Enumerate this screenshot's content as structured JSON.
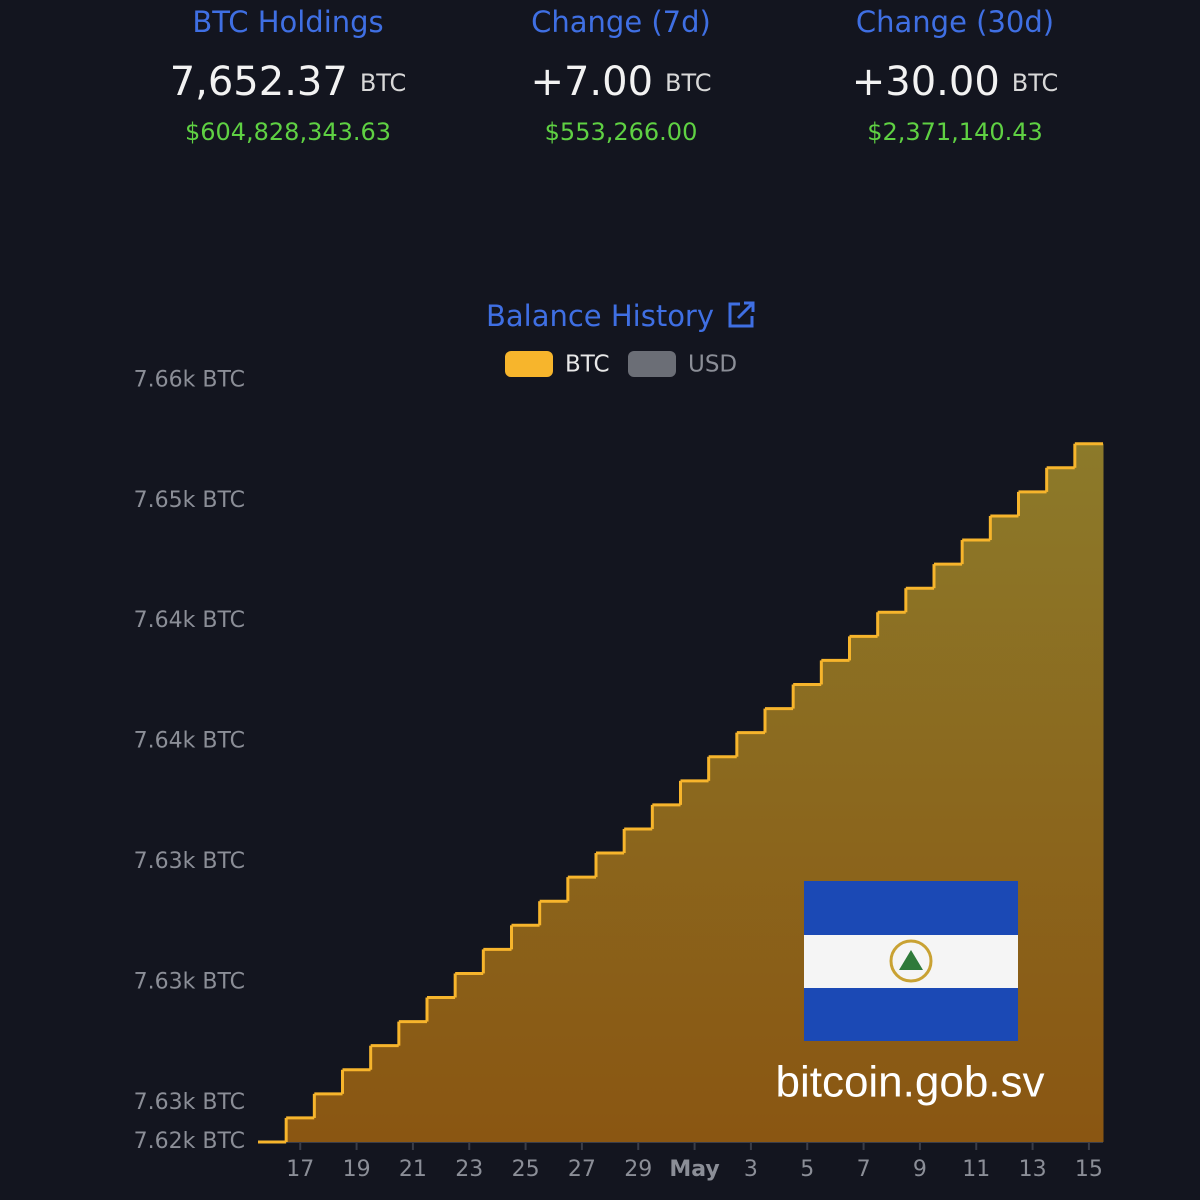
{
  "stats": [
    {
      "label": "BTC Holdings",
      "amount": "7,652.37",
      "unit": "BTC",
      "usd": "$604,828,343.63"
    },
    {
      "label": "Change (7d)",
      "amount": "+7.00",
      "unit": "BTC",
      "usd": "$553,266.00"
    },
    {
      "label": "Change (30d)",
      "amount": "+30.00",
      "unit": "BTC",
      "usd": "$2,371,140.43"
    }
  ],
  "watermark": "bitcoin.gob.sv",
  "chart_data": {
    "type": "step",
    "title": "Balance History",
    "categories": [
      null,
      "17",
      null,
      "19",
      null,
      "21",
      null,
      "23",
      null,
      "25",
      null,
      "27",
      null,
      "29",
      null,
      "May",
      null,
      "3",
      null,
      "5",
      null,
      "7",
      null,
      "9",
      null,
      "11",
      null,
      "13",
      null,
      "15"
    ],
    "series": [
      {
        "name": "BTC",
        "color": "#f7b52c",
        "values": [
          7623.37,
          7624.37,
          7625.37,
          7626.37,
          7627.37,
          7628.37,
          7629.37,
          7630.37,
          7631.37,
          7632.37,
          7633.37,
          7634.37,
          7635.37,
          7636.37,
          7637.37,
          7638.37,
          7639.37,
          7640.37,
          7641.37,
          7642.37,
          7643.37,
          7644.37,
          7645.37,
          7646.37,
          7647.37,
          7648.37,
          7649.37,
          7650.37,
          7651.37,
          7652.37
        ]
      }
    ],
    "inactive_legend": [
      {
        "name": "USD",
        "color": "#6b6e76"
      }
    ],
    "ylim": [
      7623.37,
      7660
    ],
    "yticks": [
      {
        "value": 7623.37,
        "label": "7.62k BTC"
      },
      {
        "value": 7625,
        "label": "7.63k BTC"
      },
      {
        "value": 7630,
        "label": "7.63k BTC"
      },
      {
        "value": 7635,
        "label": "7.63k BTC"
      },
      {
        "value": 7640,
        "label": "7.64k BTC"
      },
      {
        "value": 7645,
        "label": "7.64k BTC"
      },
      {
        "value": 7650,
        "label": "7.65k BTC"
      },
      {
        "value": 7655,
        "label": "7.66k BTC"
      }
    ],
    "grid": false
  }
}
